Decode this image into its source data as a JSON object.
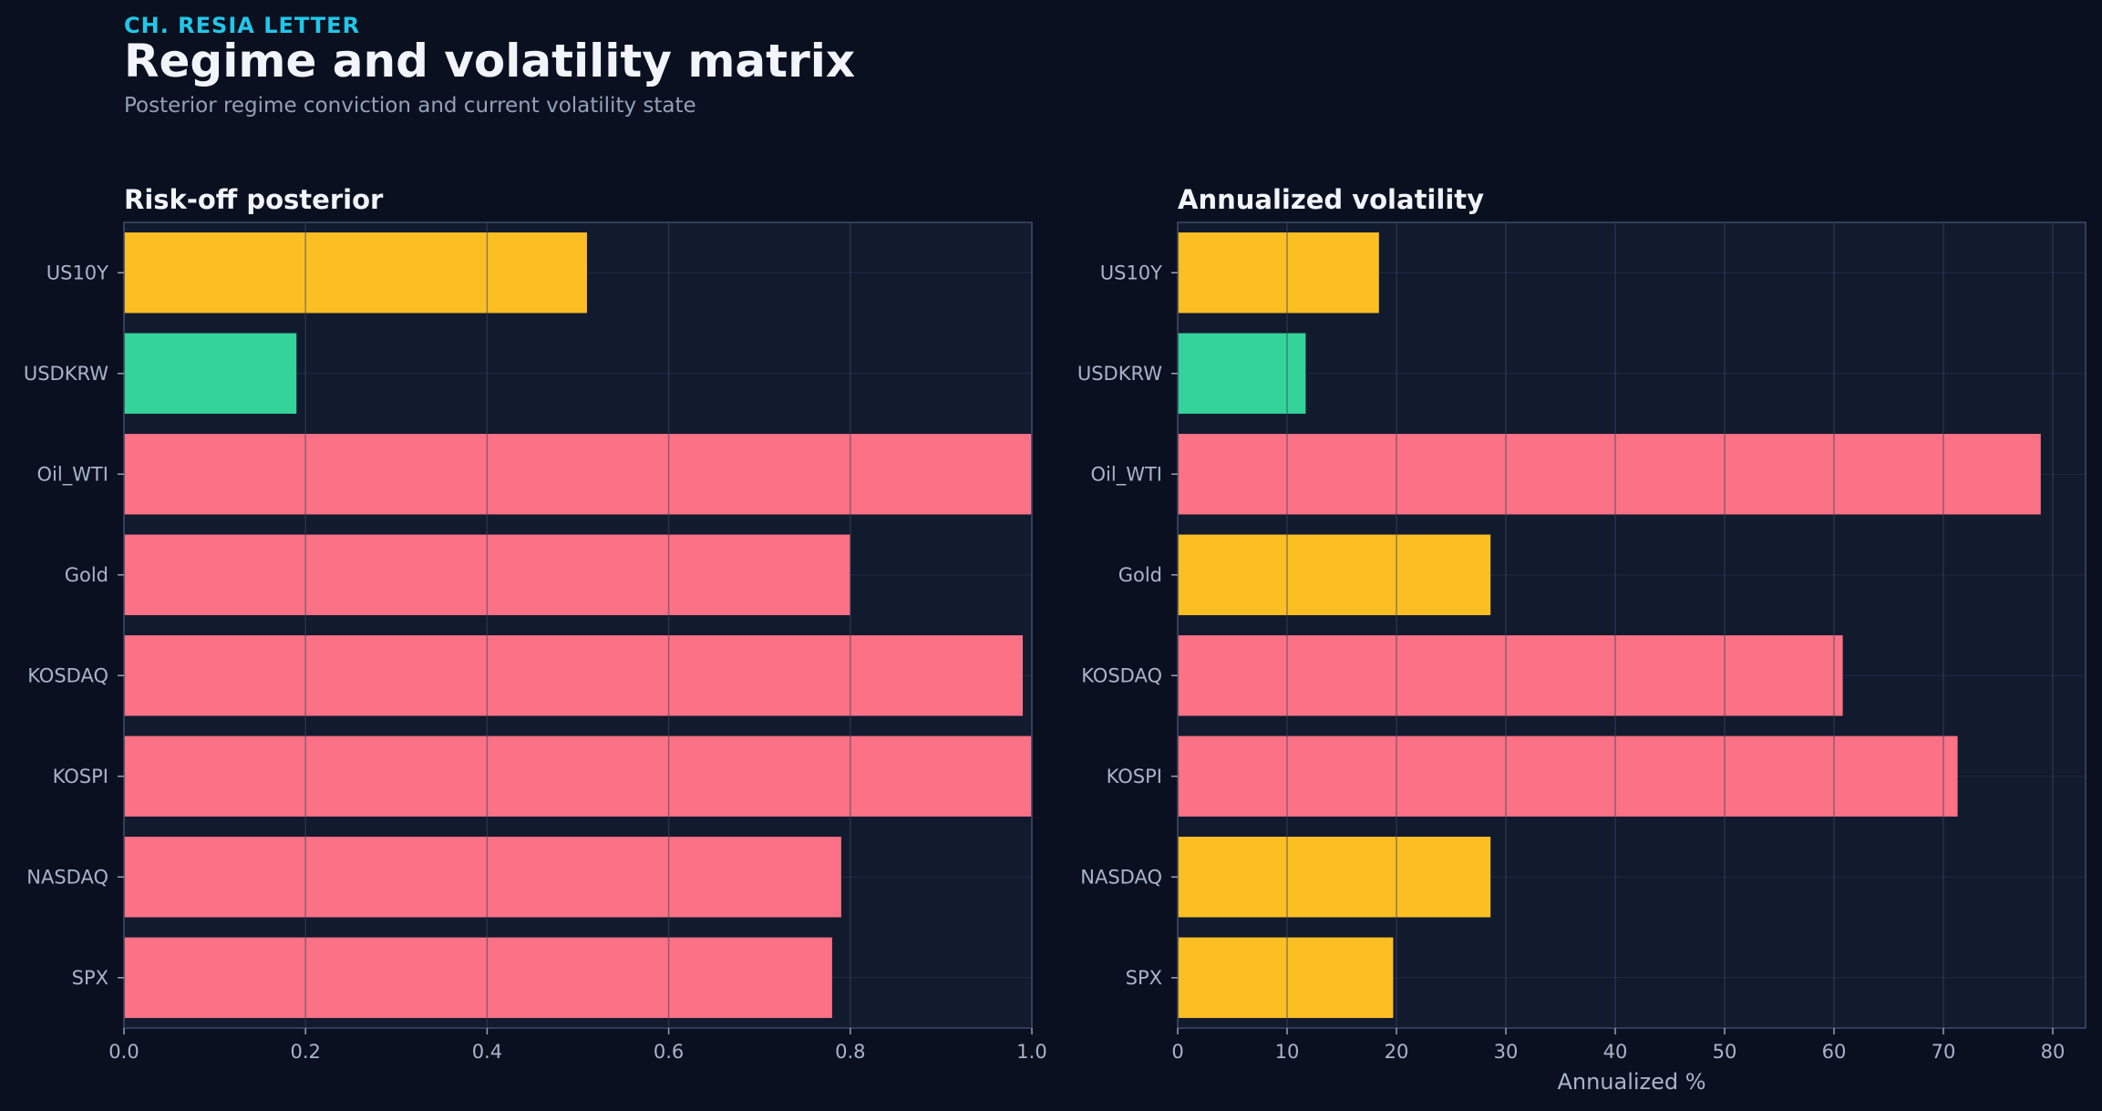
{
  "header": {
    "kicker": "CH. RESIA LETTER",
    "title": "Regime and volatility matrix",
    "subtitle": "Posterior regime conviction and current volatility state"
  },
  "colors": {
    "background": "#0b1020",
    "panel": "#121a2e",
    "risk_off": "#fb7185",
    "neutral": "#fbbf24",
    "risk_on": "#34d399"
  },
  "chart_data": [
    {
      "type": "bar",
      "orientation": "horizontal",
      "title": "Risk-off posterior",
      "xlabel": "",
      "ylabel": "",
      "xlim": [
        0,
        1.0
      ],
      "xticks": [
        "0.0",
        "0.2",
        "0.4",
        "0.6",
        "0.8",
        "1.0"
      ],
      "grid": true,
      "categories": [
        "US10Y",
        "USDKRW",
        "Oil_WTI",
        "Gold",
        "KOSDAQ",
        "KOSPI",
        "NASDAQ",
        "SPX"
      ],
      "values": [
        0.51,
        0.19,
        1.0,
        0.8,
        0.99,
        1.0,
        0.79,
        0.78
      ],
      "bar_colors": [
        "#fbbf24",
        "#34d399",
        "#fb7185",
        "#fb7185",
        "#fb7185",
        "#fb7185",
        "#fb7185",
        "#fb7185"
      ]
    },
    {
      "type": "bar",
      "orientation": "horizontal",
      "title": "Annualized volatility",
      "xlabel": "Annualized %",
      "ylabel": "",
      "xlim": [
        0,
        83
      ],
      "xticks": [
        "0",
        "10",
        "20",
        "30",
        "40",
        "50",
        "60",
        "70",
        "80"
      ],
      "grid": true,
      "categories": [
        "US10Y",
        "USDKRW",
        "Oil_WTI",
        "Gold",
        "KOSDAQ",
        "KOSPI",
        "NASDAQ",
        "SPX"
      ],
      "values": [
        18.4,
        11.7,
        78.9,
        28.6,
        60.8,
        71.3,
        28.6,
        19.7
      ],
      "bar_colors": [
        "#fbbf24",
        "#34d399",
        "#fb7185",
        "#fbbf24",
        "#fb7185",
        "#fb7185",
        "#fbbf24",
        "#fbbf24"
      ]
    }
  ]
}
